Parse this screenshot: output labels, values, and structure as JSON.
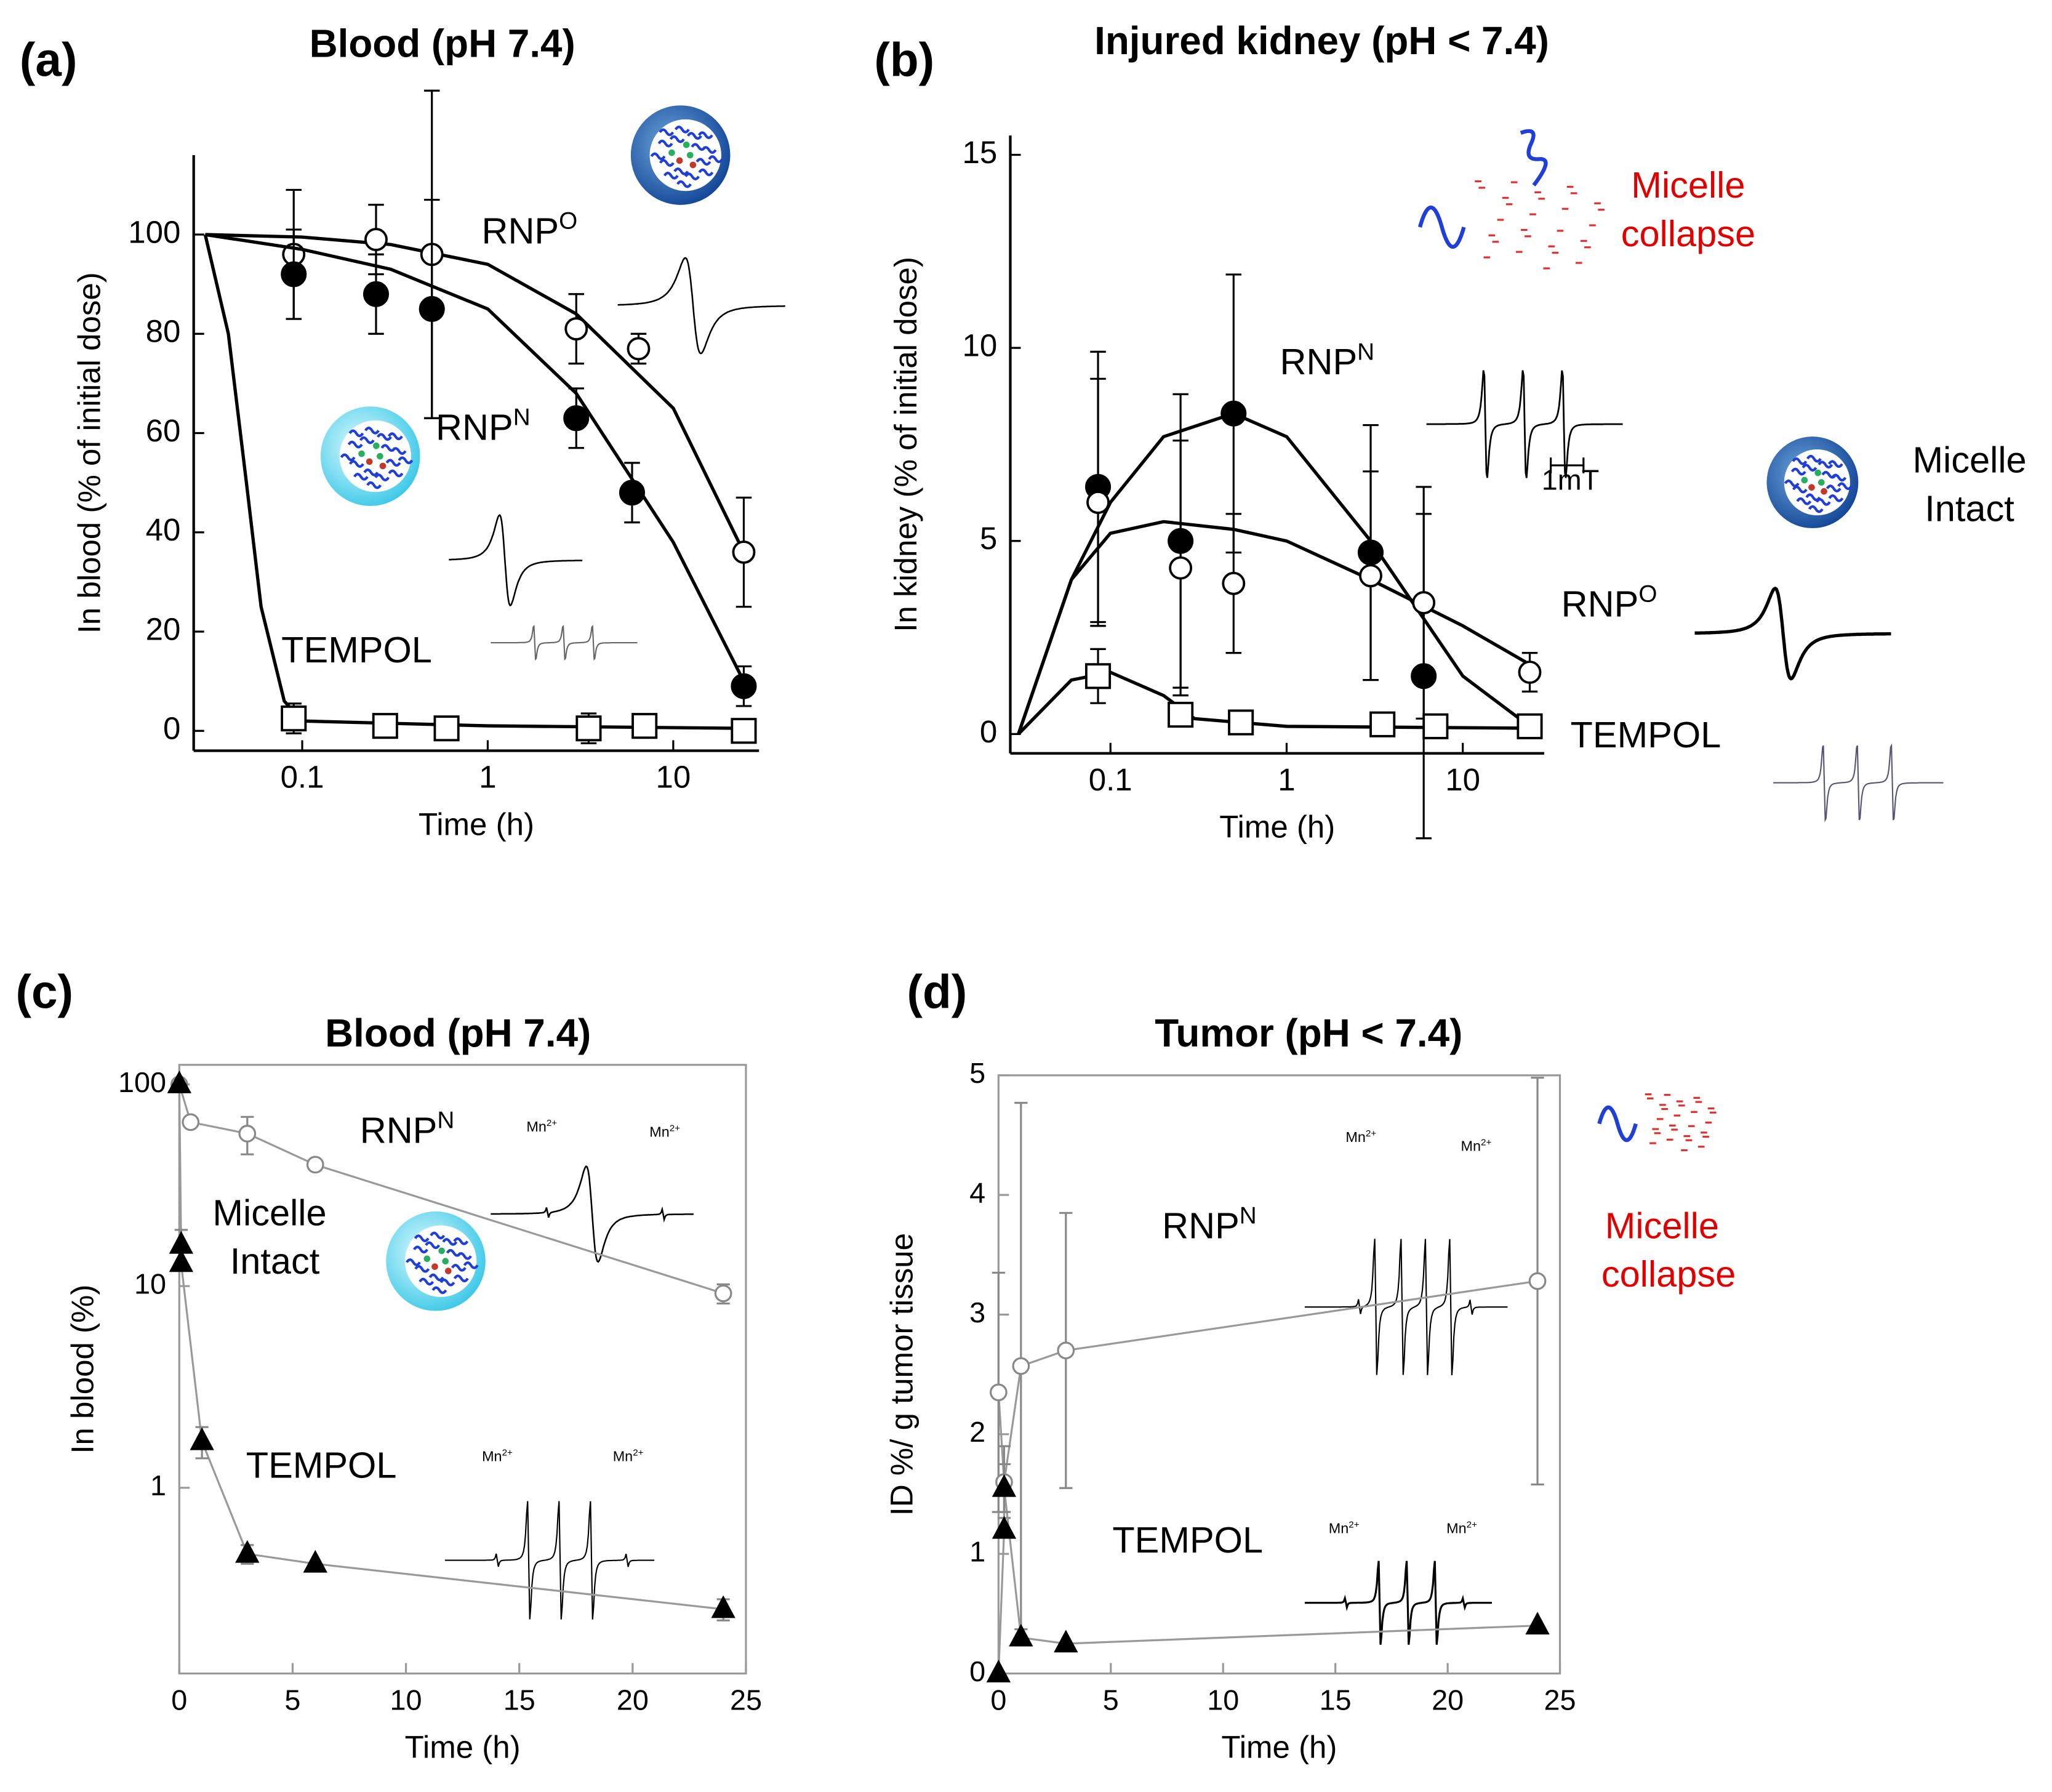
{
  "chart_data": [
    {
      "type": "scatter",
      "label": "(a)",
      "title": "Blood (pH 7.4)",
      "xlabel": "Time (h)",
      "ylabel": "In blood (% of initial dose)",
      "xscale": "log",
      "xlim": [
        0.026,
        29
      ],
      "xticks": [
        0.1,
        1,
        10
      ],
      "ylim": [
        -4,
        116
      ],
      "yticks": [
        0,
        20,
        40,
        60,
        80,
        100
      ],
      "frame": "axes",
      "series": [
        {
          "marker": "open-circle",
          "color": "#000000",
          "x": [
            0.09,
            0.25,
            0.5,
            3,
            6.5,
            24
          ],
          "values": [
            96,
            99,
            96,
            81,
            77,
            36
          ],
          "errors": [
            13,
            7,
            33,
            7,
            3,
            11
          ],
          "fit": {
            "x": [
              0.03,
              0.1,
              0.3,
              1,
              3,
              10,
              24
            ],
            "values": [
              100,
              99.5,
              98,
              94,
              84,
              65,
              36
            ]
          }
        },
        {
          "marker": "filled-circle",
          "color": "#000000",
          "x": [
            0.09,
            0.25,
            0.5,
            3,
            6,
            24
          ],
          "values": [
            92,
            88,
            85,
            63,
            48,
            9
          ],
          "errors": [
            9,
            8,
            22,
            6,
            6,
            4
          ],
          "fit": {
            "x": [
              0.03,
              0.1,
              0.3,
              1,
              3,
              10,
              24
            ],
            "values": [
              100,
              97,
              93,
              85,
              68,
              38,
              10
            ]
          }
        },
        {
          "marker": "open-square",
          "color": "#000000",
          "x": [
            0.09,
            0.28,
            0.6,
            3.5,
            7,
            24
          ],
          "values": [
            2.5,
            1,
            0.5,
            0.5,
            1,
            0
          ],
          "errors": [
            3,
            0,
            0,
            3,
            0,
            0
          ],
          "fit": {
            "x": [
              0.03,
              0.04,
              0.05,
              0.06,
              0.08,
              0.1,
              1,
              24
            ],
            "values": [
              100,
              80,
              50,
              25,
              6,
              2,
              1,
              0.5
            ]
          }
        }
      ],
      "annotations": [
        {
          "text": "RNP",
          "sup": "O",
          "color": "#000000"
        },
        {
          "text": "RNP",
          "sup": "N",
          "color": "#000000"
        },
        {
          "text": "TEMPOL",
          "color": "#000000"
        }
      ]
    },
    {
      "type": "scatter",
      "label": "(b)",
      "title": "Injured kidney (pH < 7.4)",
      "xlabel": "Time (h)",
      "ylabel": "In kidney (% of initial dose)",
      "xscale": "log",
      "xlim": [
        0.027,
        29
      ],
      "xticks": [
        0.1,
        1,
        10
      ],
      "ylim": [
        -0.5,
        15.5
      ],
      "yticks": [
        0,
        5,
        10,
        15
      ],
      "frame": "axes",
      "series": [
        {
          "marker": "filled-circle",
          "color": "#000000",
          "x": [
            0.085,
            0.25,
            0.5,
            3,
            6
          ],
          "values": [
            6.4,
            5.0,
            8.3,
            4.7,
            1.5
          ],
          "errors": [
            3.5,
            3.8,
            3.6,
            3.3,
            4.2
          ],
          "fit": {
            "x": [
              0.03,
              0.06,
              0.1,
              0.2,
              0.5,
              1,
              3,
              10,
              24
            ],
            "values": [
              0,
              4,
              6,
              7.7,
              8.3,
              7.7,
              5,
              1.5,
              0.2
            ]
          }
        },
        {
          "marker": "open-circle",
          "color": "#000000",
          "x": [
            0.085,
            0.25,
            0.5,
            3,
            6,
            24
          ],
          "values": [
            6.0,
            4.3,
            3.9,
            4.1,
            3.4,
            1.6
          ],
          "errors": [
            3.2,
            3.3,
            1.8,
            2.7,
            3,
            0.5
          ],
          "fit": {
            "x": [
              0.03,
              0.06,
              0.1,
              0.2,
              0.5,
              1,
              3,
              10,
              24
            ],
            "values": [
              0,
              4,
              5.2,
              5.5,
              5.3,
              5,
              4,
              2.8,
              1.8
            ]
          }
        },
        {
          "marker": "open-square",
          "color": "#000000",
          "x": [
            0.085,
            0.25,
            0.55,
            3.5,
            7,
            24
          ],
          "values": [
            1.5,
            0.5,
            0.3,
            0.25,
            0.2,
            0.2
          ],
          "errors": [
            0.7,
            0,
            0,
            0,
            0,
            0
          ],
          "fit": {
            "x": [
              0.03,
              0.06,
              0.1,
              0.2,
              0.3,
              1,
              24
            ],
            "values": [
              0,
              1.4,
              1.6,
              1,
              0.4,
              0.2,
              0.15
            ]
          }
        }
      ],
      "annotations": [
        {
          "text": "Micelle",
          "color": "#e00000"
        },
        {
          "text": "collapse",
          "color": "#e00000"
        },
        {
          "text": "RNP",
          "sup": "N",
          "color": "#000000"
        },
        {
          "text": "1mT",
          "color": "#000000"
        },
        {
          "text": "Micelle",
          "color": "#000000"
        },
        {
          "text": "Intact",
          "color": "#000000"
        },
        {
          "text": "RNP",
          "sup": "O",
          "color": "#000000"
        },
        {
          "text": "TEMPOL",
          "color": "#000000"
        }
      ]
    },
    {
      "type": "scatter",
      "label": "(c)",
      "title": "Blood (pH 7.4)",
      "xlabel": "Time (h)",
      "ylabel": "In blood (%)",
      "xscale": "linear",
      "yscale": "log",
      "xlim": [
        0,
        25
      ],
      "xticks": [
        0,
        5,
        10,
        15,
        20,
        25
      ],
      "ylim": [
        0.12,
        125
      ],
      "yticks": [
        1,
        10,
        100
      ],
      "frame": "box",
      "series": [
        {
          "marker": "open-circle",
          "color": "#888888",
          "line": true,
          "x": [
            0,
            0.5,
            3,
            6,
            24
          ],
          "values": [
            100,
            65,
            57,
            40,
            9.2
          ],
          "errors": [
            0,
            0,
            12,
            0,
            1
          ]
        },
        {
          "marker": "triangle",
          "color": "#000000",
          "line": true,
          "x": [
            0,
            0.083,
            0.083,
            1,
            3,
            6,
            24
          ],
          "values": [
            100,
            16,
            13,
            1.7,
            0.47,
            0.42,
            0.25
          ],
          "errors": [
            0,
            3,
            0,
            0.3,
            0.05,
            0,
            0.03
          ]
        }
      ],
      "annotations": [
        {
          "text": "RNP",
          "sup": "N",
          "color": "#000000"
        },
        {
          "text": "Micelle",
          "color": "#000000"
        },
        {
          "text": "Intact",
          "color": "#000000"
        },
        {
          "text": "TEMPOL",
          "color": "#000000"
        },
        {
          "text": "Mn",
          "sup": "2+",
          "color": "#000000"
        },
        {
          "text": "Mn",
          "sup": "2+",
          "color": "#000000"
        },
        {
          "text": "Mn",
          "sup": "2+",
          "color": "#000000"
        },
        {
          "text": "Mn",
          "sup": "2+",
          "color": "#000000"
        }
      ]
    },
    {
      "type": "scatter",
      "label": "(d)",
      "title": "Tumor (pH < 7.4)",
      "xlabel": "Time (h)",
      "ylabel": "ID %/ g tumor tissue",
      "xscale": "linear",
      "xlim": [
        0,
        25
      ],
      "xticks": [
        0,
        5,
        10,
        15,
        20,
        25
      ],
      "ylim": [
        0,
        5
      ],
      "yticks": [
        0,
        1,
        2,
        3,
        4,
        5
      ],
      "frame": "box",
      "series": [
        {
          "marker": "open-circle",
          "color": "#888888",
          "line": true,
          "x": [
            0,
            0.25,
            1,
            3,
            24
          ],
          "values": [
            2.35,
            1.6,
            2.57,
            2.7,
            3.28
          ],
          "errors": [
            1.0,
            0.3,
            2.2,
            1.15,
            1.7
          ]
        },
        {
          "marker": "triangle",
          "color": "#000000",
          "line": true,
          "x": [
            0,
            0.25,
            0.25,
            1,
            3,
            24
          ],
          "values": [
            0,
            1.2,
            1.55,
            0.3,
            0.25,
            0.4
          ],
          "errors": [
            0,
            0,
            0.2,
            0,
            0,
            0
          ]
        }
      ],
      "annotations": [
        {
          "text": "RNP",
          "sup": "N",
          "color": "#000000"
        },
        {
          "text": "Micelle",
          "color": "#e00000"
        },
        {
          "text": "collapse",
          "color": "#e00000"
        },
        {
          "text": "TEMPOL",
          "color": "#000000"
        },
        {
          "text": "Mn",
          "sup": "2+",
          "color": "#000000"
        },
        {
          "text": "Mn",
          "sup": "2+",
          "color": "#000000"
        },
        {
          "text": "Mn",
          "sup": "2+",
          "color": "#000000"
        },
        {
          "text": "Mn",
          "sup": "2+",
          "color": "#000000"
        }
      ]
    }
  ]
}
